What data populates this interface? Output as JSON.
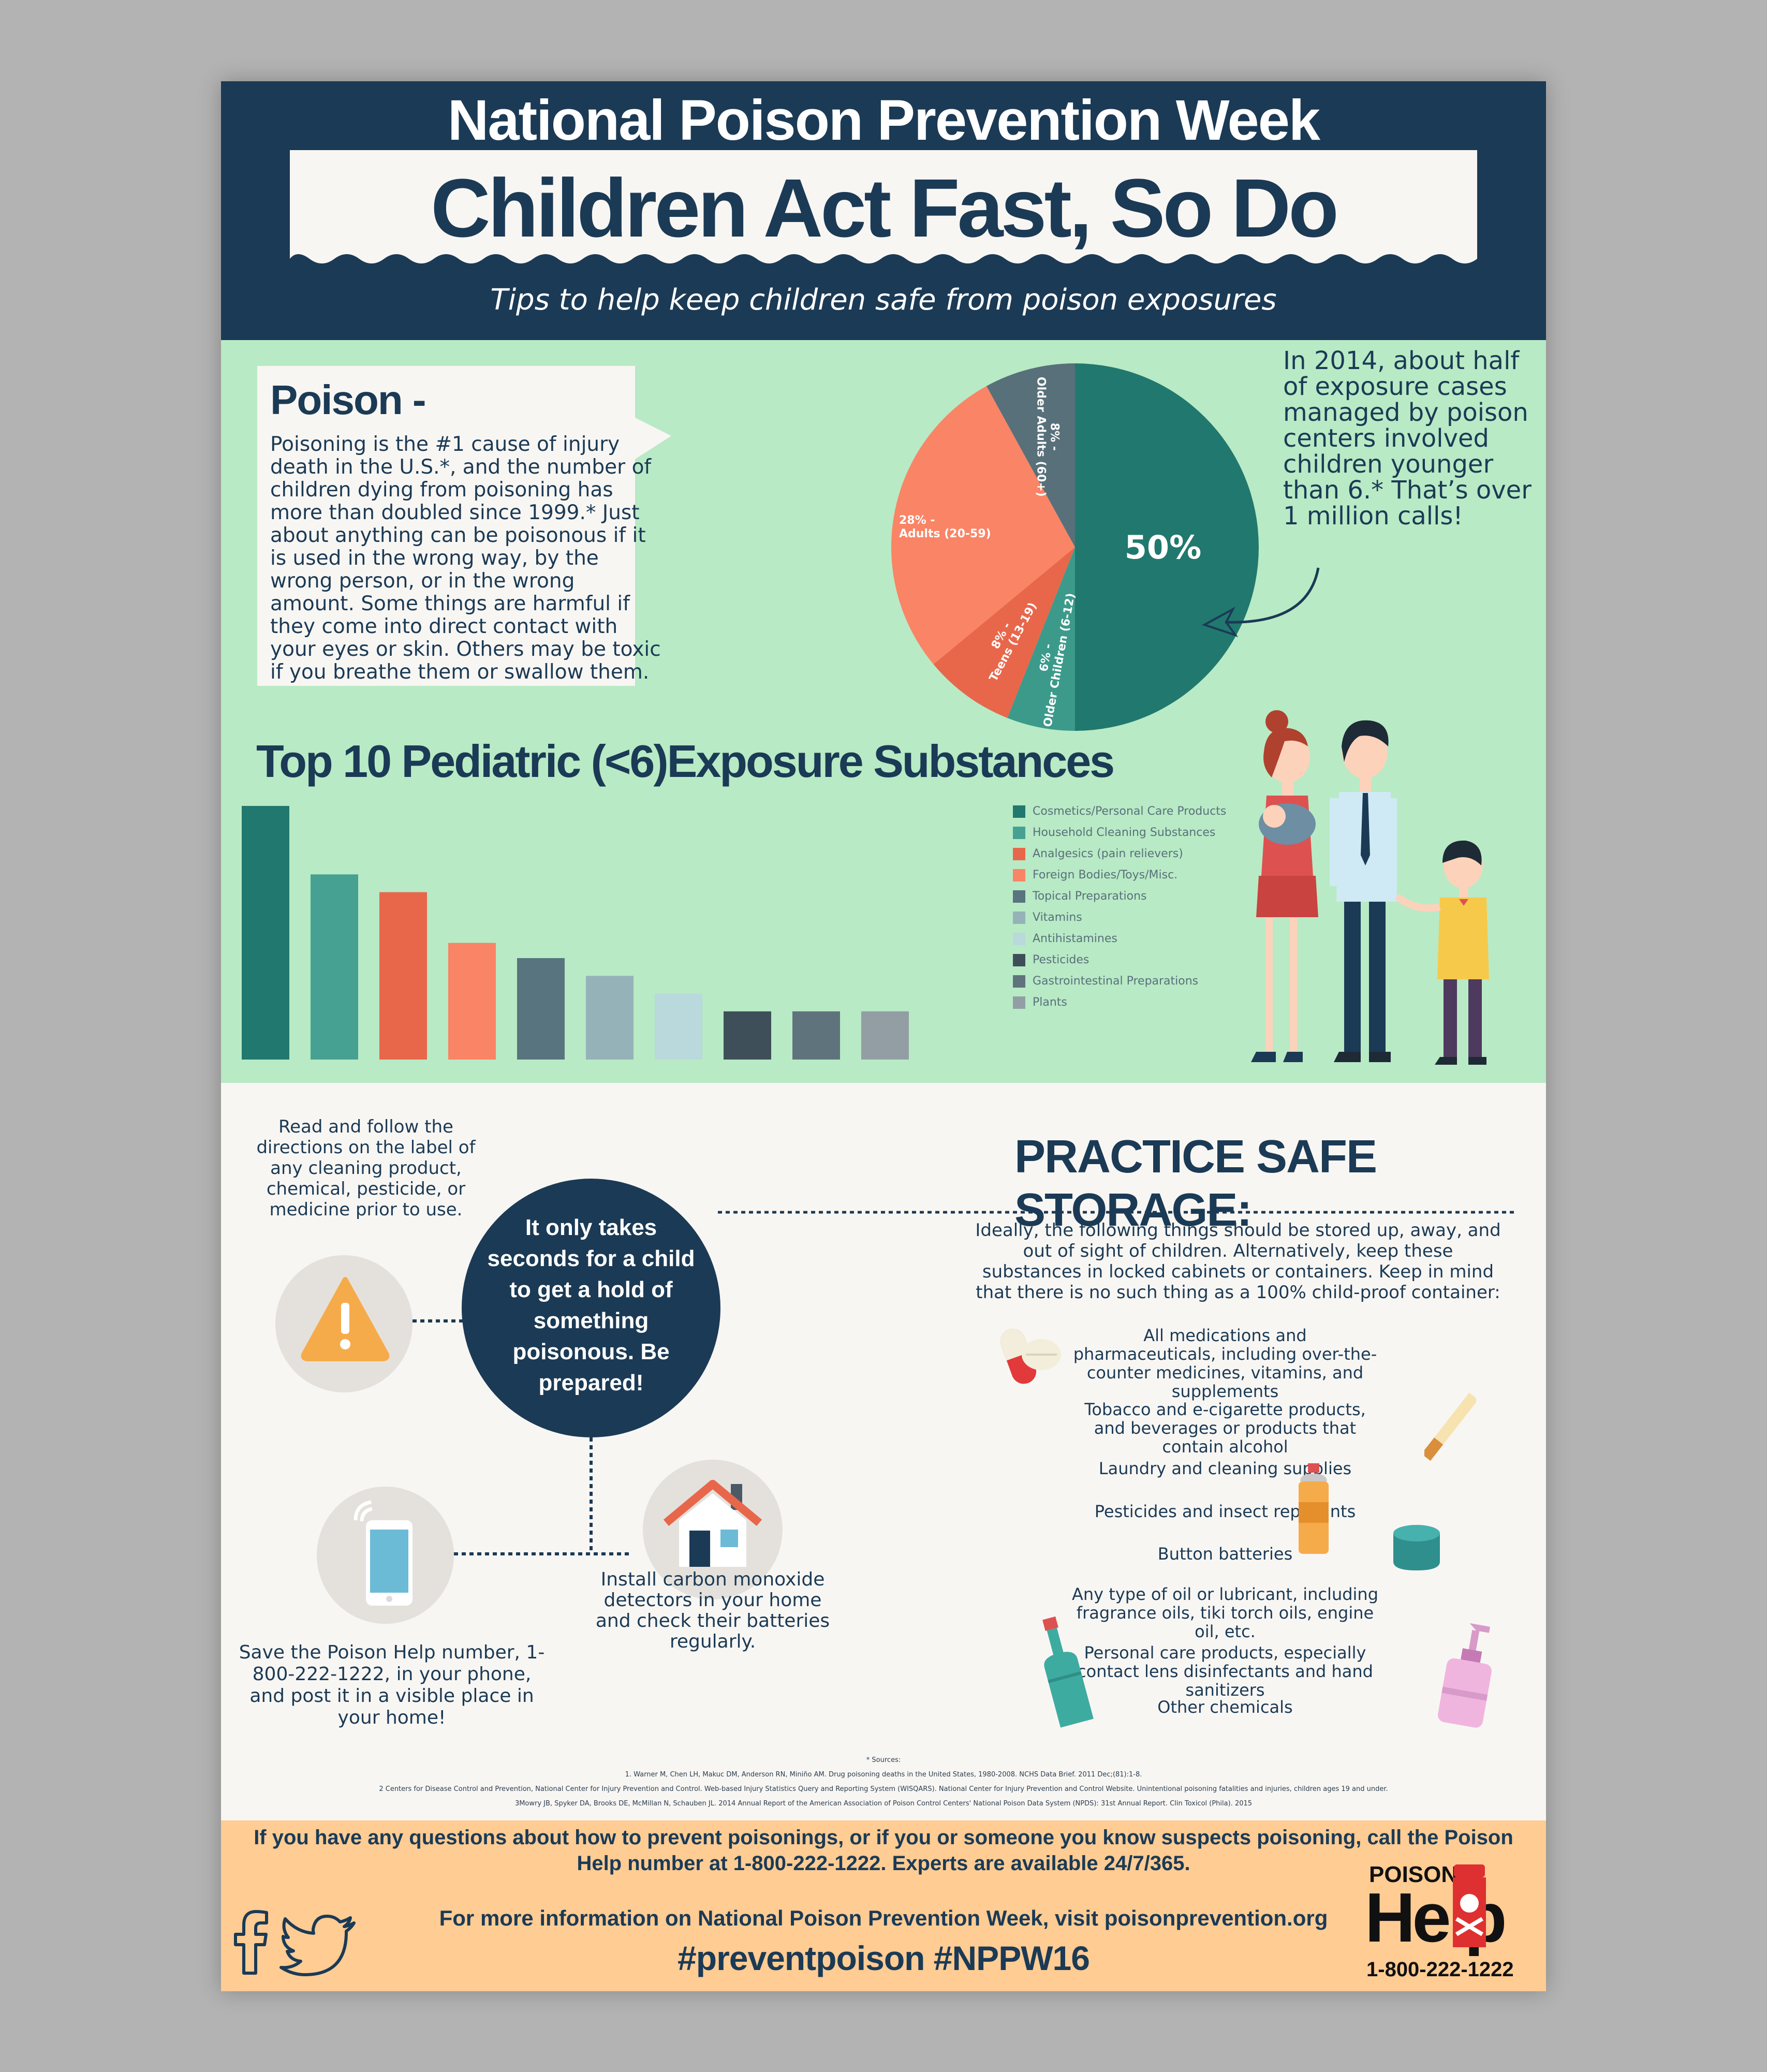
{
  "header": {
    "event_title": "National Poison Prevention Week",
    "headline": "Children Act Fast, So Do Poisons",
    "subtitle": "Tips to help keep children safe from poison exposures"
  },
  "poison_box": {
    "title": "Poison -",
    "body": "Poisoning is the #1 cause of injury death in the U.S.*, and the number of children dying from poisoning has more than doubled since 1999.* Just about anything can be poisonous if it is used in the wrong way, by the wrong person, or in the wrong amount. Some things are harmful if they come into direct contact with your eyes or skin. Others may be toxic if you breathe them or swallow them."
  },
  "pie_note": "In 2014, about half of exposure cases managed by poison centers involved children younger than 6.* That’s over 1 million calls!",
  "chart_data": [
    {
      "type": "pie",
      "slices": [
        {
          "label": "50%",
          "value": 50,
          "color": "#21786e"
        },
        {
          "label": "6% - Older Children (6-12)",
          "value": 6,
          "color": "#3c9a8b"
        },
        {
          "label": "8% - Teens (13-19)",
          "value": 8,
          "color": "#e8674b"
        },
        {
          "label": "28% - Adults (20-59)",
          "value": 28,
          "color": "#fa8466"
        },
        {
          "label": "8% - Older Adults (60+)",
          "value": 8,
          "color": "#58707a"
        }
      ]
    },
    {
      "type": "bar",
      "title": "Top 10 Pediatric (<6)Exposure Substances",
      "categories": [
        "Cosmetics/Personal Care Products",
        "Household Cleaning Substances",
        "Analgesics (pain relievers)",
        "Foreign Bodies/Toys/Misc.",
        "Topical Preparations",
        "Vitamins",
        "Antihistamines",
        "Pesticides",
        "Gastrointestinal Preparations",
        "Plants"
      ],
      "values": [
        100,
        73,
        66,
        46,
        40,
        33,
        26,
        19,
        19,
        19
      ],
      "colors": [
        "#21786e",
        "#46a192",
        "#e8674b",
        "#fa8466",
        "#58747e",
        "#95b2b8",
        "#b9d9dc",
        "#3e4f5a",
        "#5f737c",
        "#939ea4"
      ],
      "legend": "right"
    }
  ],
  "tips": {
    "read": "Read and follow the directions on the label of any cleaning product, chemical, pesticide, or medicine prior to use.",
    "center": "It only takes seconds for a child to get a hold of something poisonous. Be prepared!",
    "save": "Save the Poison Help number, 1-800-222-1222, in your phone, and post it in a visible place in your home!",
    "install": "Install carbon monoxide detectors in your home and check their batteries regularly."
  },
  "storage": {
    "title": "PRACTICE SAFE STORAGE:",
    "intro": "Ideally, the following things should be stored up, away, and out of sight of children. Alternatively, keep these substances in locked cabinets or containers. Keep in mind that there is no such thing as a 100% child-proof container:",
    "items": [
      "All medications and pharmaceuticals, including over-the-counter medicines, vitamins, and supplements",
      "Tobacco and e-cigarette products, and beverages or products that contain alcohol",
      "Laundry and cleaning supplies",
      "Pesticides and insect repellants",
      "Button batteries",
      "Any type of oil or lubricant, including fragrance oils, tiki torch oils, engine oil, etc.",
      "Personal care products, especially contact lens disinfectants and hand sanitizers",
      "Other chemicals"
    ],
    "icons": [
      "pill-icon",
      "cigarette-icon",
      "spray-can-icon",
      "battery-icon",
      "oil-bottle-icon",
      "soap-dispenser-icon"
    ]
  },
  "sources": {
    "label": "* Sources:",
    "lines": [
      "1. Warner M, Chen LH, Makuc DM, Anderson RN, Miniño AM. Drug poisoning deaths in the United States, 1980-2008. NCHS Data Brief. 2011 Dec;(81):1-8.",
      "2 Centers for Disease Control and Prevention, National Center for Injury Prevention and Control. Web-based Injury Statistics Query and Reporting System (WISQARS). National Center for Injury Prevention and Control Website. Unintentional poisoning fatalities and injuries, children ages 19 and under.",
      "3Mowry JB, Spyker DA, Brooks DE, McMillan N, Schauben JL. 2014 Annual Report of the American Association of Poison Control Centers' National Poison Data System (NPDS): 31st Annual Report. Clin Toxicol (Phila). 2015"
    ]
  },
  "footer": {
    "question": "If you have any questions about how to prevent poisonings, or if you or someone you know suspects poisoning, call the Poison Help number at 1-800-222-1222.   Experts are available 24/7/365.",
    "more_info": "For more information on National Poison Prevention Week, visit poisonprevention.org",
    "hashtags": "#preventpoison   #NPPW16",
    "logo_poison": "POISON",
    "logo_help": "Help",
    "logo_number": "1-800-222-1222",
    "social_icons": [
      "facebook-icon",
      "twitter-icon"
    ]
  }
}
